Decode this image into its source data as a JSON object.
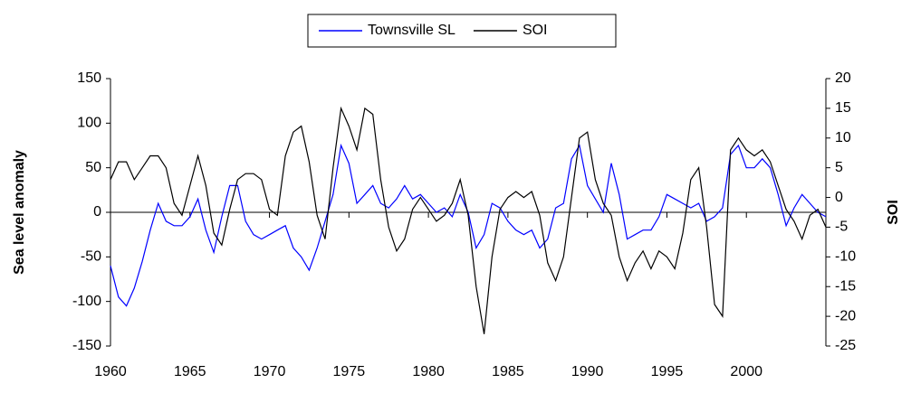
{
  "chart_data": {
    "type": "line",
    "legend": "top",
    "y_label": "Sea level anomaly",
    "y2_label": "SOI",
    "x": [
      1960,
      1960.5,
      1961,
      1961.5,
      1962,
      1962.5,
      1963,
      1963.5,
      1964,
      1964.5,
      1965,
      1965.5,
      1966,
      1966.5,
      1967,
      1967.5,
      1968,
      1968.5,
      1969,
      1969.5,
      1970,
      1970.5,
      1971,
      1971.5,
      1972,
      1972.5,
      1973,
      1973.5,
      1974,
      1974.5,
      1975,
      1975.5,
      1976,
      1976.5,
      1977,
      1977.5,
      1978,
      1978.5,
      1979,
      1979.5,
      1980,
      1980.5,
      1981,
      1981.5,
      1982,
      1982.5,
      1983,
      1983.5,
      1984,
      1984.5,
      1985,
      1985.5,
      1986,
      1986.5,
      1987,
      1987.5,
      1988,
      1988.5,
      1989,
      1989.5,
      1990,
      1990.5,
      1991,
      1991.5,
      1992,
      1992.5,
      1993,
      1993.5,
      1994,
      1994.5,
      1995,
      1995.5,
      1996,
      1996.5,
      1997,
      1997.5,
      1998,
      1998.5,
      1999,
      1999.5,
      2000,
      2000.5,
      2001,
      2001.5,
      2002,
      2002.5,
      2003,
      2003.5,
      2004,
      2004.5,
      2005
    ],
    "series": [
      {
        "name": "Townsville SL",
        "color": "#0000ff",
        "values": [
          -60,
          -95,
          -105,
          -85,
          -55,
          -20,
          10,
          -10,
          -15,
          -15,
          -5,
          15,
          -20,
          -45,
          -5,
          30,
          30,
          -10,
          -25,
          -30,
          -25,
          -20,
          -15,
          -40,
          -50,
          -65,
          -40,
          -10,
          20,
          75,
          55,
          10,
          20,
          30,
          10,
          5,
          15,
          30,
          15,
          20,
          10,
          0,
          5,
          -5,
          20,
          0,
          -40,
          -25,
          10,
          5,
          -10,
          -20,
          -25,
          -20,
          -40,
          -30,
          5,
          10,
          60,
          75,
          30,
          15,
          0,
          55,
          20,
          -30,
          -25,
          -20,
          -20,
          -5,
          20,
          15,
          10,
          5,
          10,
          -10,
          -5,
          5,
          65,
          75,
          50,
          50,
          60,
          50,
          20,
          -15,
          5,
          20,
          10,
          0,
          -5
        ]
      },
      {
        "name": "SOI",
        "color": "#000000",
        "axis": "y2",
        "values": [
          3,
          6,
          6,
          3,
          5,
          7,
          7,
          5,
          -1,
          -3,
          2,
          7,
          2,
          -6,
          -8,
          -2,
          3,
          4,
          4,
          3,
          -2,
          -3,
          7,
          11,
          12,
          6,
          -3,
          -7,
          5,
          15,
          12,
          8,
          15,
          14,
          3,
          -5,
          -9,
          -7,
          -2,
          0,
          -2,
          -4,
          -3,
          -1,
          3,
          -3,
          -15,
          -23,
          -10,
          -2,
          0,
          1,
          0,
          1,
          -3,
          -11,
          -14,
          -10,
          0,
          10,
          11,
          3,
          -1,
          -3,
          -10,
          -14,
          -11,
          -9,
          -12,
          -9,
          -10,
          -12,
          -6,
          3,
          5,
          -5,
          -18,
          -20,
          8,
          10,
          8,
          7,
          8,
          6,
          2,
          -2,
          -4,
          -7,
          -3,
          -2,
          -5
        ]
      }
    ],
    "xlim": [
      1960,
      2005
    ],
    "xticks": [
      1960,
      1965,
      1970,
      1975,
      1980,
      1985,
      1990,
      1995,
      2000
    ],
    "ylim": [
      -150,
      150
    ],
    "yticks": [
      -150,
      -100,
      -50,
      0,
      50,
      100,
      150
    ],
    "y2lim": [
      -25,
      20
    ],
    "y2ticks": [
      -25,
      -20,
      -15,
      -10,
      -5,
      0,
      5,
      10,
      15,
      20
    ]
  }
}
